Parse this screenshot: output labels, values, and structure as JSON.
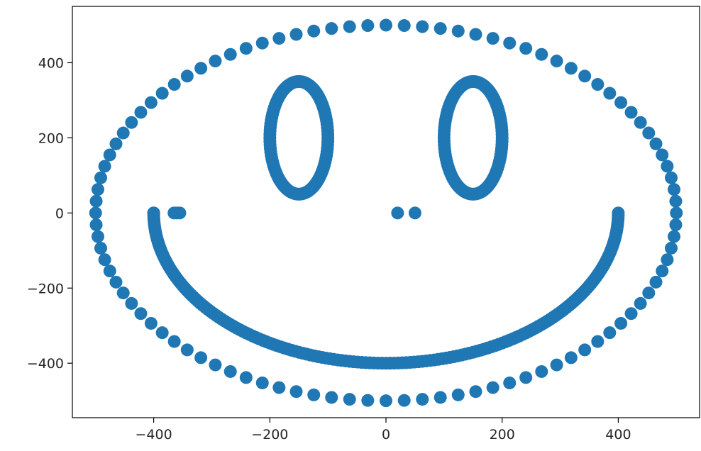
{
  "chart_data": {
    "type": "scatter",
    "title": "",
    "xlabel": "",
    "ylabel": "",
    "xlim": [
      -540,
      540
    ],
    "ylim": [
      -545,
      550
    ],
    "xticks": [
      -400,
      -200,
      0,
      200,
      400
    ],
    "yticks": [
      -400,
      -200,
      0,
      200,
      400
    ],
    "xtick_labels": [
      "−400",
      "−200",
      "0",
      "200",
      "400"
    ],
    "ytick_labels": [
      "−400",
      "−200",
      "0",
      "200",
      "400"
    ],
    "grid": false,
    "legend": "none",
    "marker_color": "#1f77b4",
    "series": [
      {
        "shape": "face-outline-circle",
        "generator": {
          "kind": "circle",
          "center": [
            0,
            0
          ],
          "radius": 500,
          "count": 100
        }
      },
      {
        "shape": "left-eye-ellipse",
        "generator": {
          "kind": "ellipse",
          "center": [
            -150,
            200
          ],
          "rx": 50,
          "ry": 150,
          "count": 100
        }
      },
      {
        "shape": "right-eye-ellipse",
        "generator": {
          "kind": "ellipse",
          "center": [
            150,
            200
          ],
          "rx": 50,
          "ry": 150,
          "count": 100
        }
      },
      {
        "shape": "mouth-lower-half-circle",
        "generator": {
          "kind": "arc",
          "center": [
            0,
            0
          ],
          "radius": 400,
          "start_deg": 180,
          "end_deg": 360,
          "count": 180
        }
      },
      {
        "shape": "mouth-left-corner-points",
        "points": [
          [
            -400,
            0
          ],
          [
            -400,
            0
          ],
          [
            -365,
            0
          ],
          [
            -360,
            0
          ],
          [
            -355,
            0
          ]
        ]
      },
      {
        "shape": "center-points",
        "points": [
          [
            20,
            0
          ],
          [
            50,
            0
          ]
        ]
      }
    ]
  }
}
